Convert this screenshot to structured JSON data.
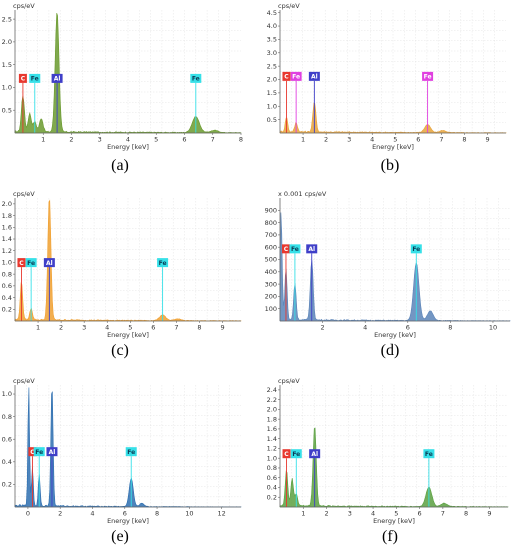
{
  "chart_data": [
    {
      "panel": "(a)",
      "type": "area",
      "unit_label": "cps/eV",
      "xlabel": "Energy [keV]",
      "xlim": [
        0,
        8
      ],
      "ylim": [
        0,
        2.7
      ],
      "xticks": [
        "1",
        "2",
        "3",
        "4",
        "5",
        "6",
        "7",
        "8"
      ],
      "yticks": [
        "0.5",
        "1.0",
        "1.5",
        "2.0",
        "2.5"
      ],
      "fill_color": "#6a9a2e",
      "peaks": [
        {
          "x": 0.28,
          "y": 0.8
        },
        {
          "x": 0.52,
          "y": 0.4
        },
        {
          "x": 0.7,
          "y": 0.22
        },
        {
          "x": 0.93,
          "y": 0.3
        },
        {
          "x": 1.49,
          "y": 2.65
        },
        {
          "x": 6.4,
          "y": 0.35
        },
        {
          "x": 7.06,
          "y": 0.05
        }
      ],
      "labels": [
        {
          "text": "C",
          "x": 0.28,
          "y": 1.1,
          "bg": "#e8382f"
        },
        {
          "text": "Fe",
          "x": 0.7,
          "y": 1.1,
          "bg": "#36e0e8"
        },
        {
          "text": "Al",
          "x": 1.49,
          "y": 1.1,
          "bg": "#3f3fc8"
        },
        {
          "text": "Fe",
          "x": 6.4,
          "y": 1.1,
          "bg": "#36e0e8"
        }
      ]
    },
    {
      "panel": "(b)",
      "type": "area",
      "unit_label": "cps/eV",
      "xlabel": "Energy [keV]",
      "xlim": [
        0,
        9.8
      ],
      "ylim": [
        0,
        4.6
      ],
      "xticks": [
        "1",
        "2",
        "3",
        "4",
        "5",
        "6",
        "7",
        "8",
        "9"
      ],
      "yticks": [
        "0.5",
        "1.0",
        "1.5",
        "2.0",
        "2.5",
        "3.0",
        "3.5",
        "4.0",
        "4.5"
      ],
      "fill_color": "#e8a33a",
      "peaks": [
        {
          "x": 0.28,
          "y": 0.55
        },
        {
          "x": 0.7,
          "y": 0.35
        },
        {
          "x": 1.49,
          "y": 1.1
        },
        {
          "x": 6.4,
          "y": 0.3
        },
        {
          "x": 7.06,
          "y": 0.08
        }
      ],
      "labels": [
        {
          "text": "C",
          "x": 0.28,
          "y": 1.95,
          "bg": "#e8382f"
        },
        {
          "text": "Fe",
          "x": 0.7,
          "y": 1.95,
          "bg": "#e040e0"
        },
        {
          "text": "Al",
          "x": 1.49,
          "y": 1.95,
          "bg": "#3f3fc8"
        },
        {
          "text": "Fe",
          "x": 6.4,
          "y": 1.95,
          "bg": "#e040e0"
        }
      ]
    },
    {
      "panel": "(c)",
      "type": "area",
      "unit_label": "cps/eV",
      "xlabel": "Energy [keV]",
      "xlim": [
        0,
        9.8
      ],
      "ylim": [
        0,
        2.1
      ],
      "xticks": [
        "1",
        "2",
        "3",
        "4",
        "5",
        "6",
        "7",
        "8",
        "9"
      ],
      "yticks": [
        "0.2",
        "0.4",
        "0.6",
        "0.8",
        "1.0",
        "1.2",
        "1.4",
        "1.6",
        "1.8",
        "2.0"
      ],
      "fill_color": "#f0a030",
      "peaks": [
        {
          "x": 0.28,
          "y": 0.65
        },
        {
          "x": 0.7,
          "y": 0.2
        },
        {
          "x": 1.49,
          "y": 2.1
        },
        {
          "x": 6.4,
          "y": 0.1
        },
        {
          "x": 7.06,
          "y": 0.03
        }
      ],
      "labels": [
        {
          "text": "C",
          "x": 0.28,
          "y": 0.92,
          "bg": "#e8382f"
        },
        {
          "text": "Fe",
          "x": 0.7,
          "y": 0.92,
          "bg": "#36e0e8"
        },
        {
          "text": "Al",
          "x": 1.49,
          "y": 0.92,
          "bg": "#3f3fc8"
        },
        {
          "text": "Fe",
          "x": 6.4,
          "y": 0.92,
          "bg": "#36e0e8"
        }
      ]
    },
    {
      "panel": "(d)",
      "type": "area",
      "unit_label": "x 0.001 cps/eV",
      "xlabel": "Energy [keV]",
      "xlim": [
        0,
        10.8
      ],
      "ylim": [
        0,
        1000
      ],
      "xticks": [
        "2",
        "4",
        "6",
        "8",
        "10"
      ],
      "yticks": [
        "100",
        "200",
        "300",
        "400",
        "500",
        "600",
        "700",
        "800",
        "900"
      ],
      "fill_color": "#5b84b8",
      "peaks": [
        {
          "x": 0.05,
          "y": 880
        },
        {
          "x": 0.28,
          "y": 420
        },
        {
          "x": 0.7,
          "y": 300
        },
        {
          "x": 1.49,
          "y": 490
        },
        {
          "x": 6.4,
          "y": 470
        },
        {
          "x": 7.06,
          "y": 80
        }
      ],
      "labels": [
        {
          "text": "C",
          "x": 0.28,
          "y": 550,
          "bg": "#e8382f"
        },
        {
          "text": "Fe",
          "x": 0.7,
          "y": 550,
          "bg": "#36e0e8"
        },
        {
          "text": "Al",
          "x": 1.49,
          "y": 550,
          "bg": "#3f3fc8"
        },
        {
          "text": "Fe",
          "x": 6.4,
          "y": 550,
          "bg": "#36e0e8"
        }
      ]
    },
    {
      "panel": "(e)",
      "type": "area",
      "unit_label": "cps/eV",
      "xlabel": "Energy [keV]",
      "xlim": [
        -0.8,
        13.2
      ],
      "ylim": [
        0,
        1.08
      ],
      "xticks": [
        "0",
        "2",
        "4",
        "6",
        "8",
        "10",
        "12"
      ],
      "yticks": [
        "0.2",
        "0.4",
        "0.6",
        "0.8",
        "1.0"
      ],
      "fill_color": "#2e6fb0",
      "peaks": [
        {
          "x": 0.05,
          "y": 1.08
        },
        {
          "x": 0.28,
          "y": 0.35
        },
        {
          "x": 0.7,
          "y": 0.28
        },
        {
          "x": 1.49,
          "y": 1.08
        },
        {
          "x": 6.4,
          "y": 0.25
        },
        {
          "x": 7.06,
          "y": 0.03
        }
      ],
      "labels": [
        {
          "text": "C",
          "x": 0.28,
          "y": 0.45,
          "bg": "#e8382f"
        },
        {
          "text": "Fe",
          "x": 0.7,
          "y": 0.45,
          "bg": "#36e0e8"
        },
        {
          "text": "Al",
          "x": 1.49,
          "y": 0.45,
          "bg": "#3f3fc8"
        },
        {
          "text": "Fe",
          "x": 6.4,
          "y": 0.45,
          "bg": "#36e0e8"
        }
      ]
    },
    {
      "panel": "(f)",
      "type": "area",
      "unit_label": "cps/eV",
      "xlabel": "Energy [keV]",
      "xlim": [
        0,
        9.8
      ],
      "ylim": [
        0,
        2.5
      ],
      "xticks": [
        "1",
        "2",
        "3",
        "4",
        "5",
        "6",
        "7",
        "8",
        "9"
      ],
      "yticks": [
        "0.2",
        "0.4",
        "0.6",
        "0.8",
        "1.0",
        "1.2",
        "1.4",
        "1.6",
        "1.8",
        "2.0",
        "2.2",
        "2.4"
      ],
      "fill_color": "#5aa040",
      "peaks": [
        {
          "x": 0.28,
          "y": 0.75
        },
        {
          "x": 0.52,
          "y": 0.55
        },
        {
          "x": 0.7,
          "y": 0.25
        },
        {
          "x": 1.49,
          "y": 1.65
        },
        {
          "x": 6.4,
          "y": 0.4
        },
        {
          "x": 7.06,
          "y": 0.07
        }
      ],
      "labels": [
        {
          "text": "C",
          "x": 0.28,
          "y": 1.0,
          "bg": "#e8382f"
        },
        {
          "text": "Fe",
          "x": 0.7,
          "y": 1.0,
          "bg": "#36e0e8"
        },
        {
          "text": "Al",
          "x": 1.49,
          "y": 1.0,
          "bg": "#3f3fc8"
        },
        {
          "text": "Fe",
          "x": 6.4,
          "y": 1.0,
          "bg": "#36e0e8"
        }
      ]
    }
  ]
}
